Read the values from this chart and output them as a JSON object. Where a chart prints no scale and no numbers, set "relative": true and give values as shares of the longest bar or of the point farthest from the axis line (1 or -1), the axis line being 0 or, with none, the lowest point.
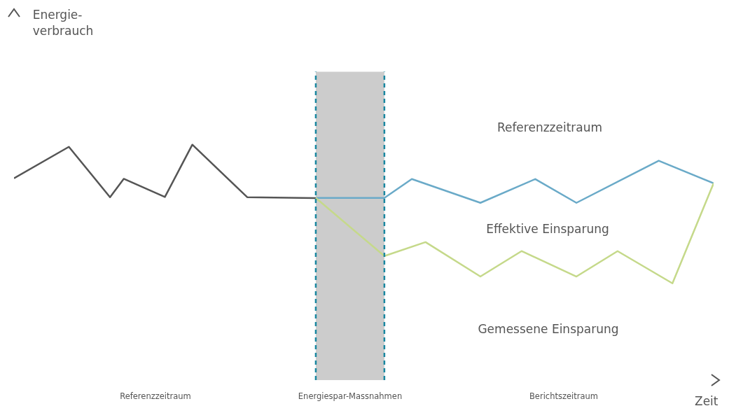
{
  "chart_data": {
    "type": "line",
    "relative": true,
    "xlabel": "Zeit",
    "categories": [
      null,
      null,
      null,
      null,
      null,
      null,
      null,
      null,
      null,
      null,
      null,
      null,
      null,
      null,
      null,
      null,
      null,
      null,
      null,
      null,
      null,
      null,
      null,
      null,
      null,
      null,
      null,
      null,
      null,
      null,
      null,
      null,
      null,
      null,
      null,
      null,
      null,
      null,
      null,
      null,
      null,
      null,
      null,
      null,
      null,
      null,
      null,
      null,
      null,
      null,
      null,
      null
    ],
    "grid": false,
    "legend": false,
    "marker": "none",
    "line_style": "solid",
    "series": [
      {
        "color": "#555555",
        "values": [
          0.857,
          null,
          null,
          null,
          0.991,
          null,
          null,
          0.777,
          0.855,
          null,
          null,
          0.778,
          null,
          1,
          null,
          null,
          null,
          0.777,
          null,
          null,
          null,
          null,
          0.773,
          null,
          null,
          null,
          null,
          null,
          null,
          null,
          null,
          null,
          null,
          null,
          null,
          null,
          null,
          null,
          null,
          null,
          null,
          null,
          null,
          null,
          null,
          null,
          null,
          null,
          null,
          null,
          null,
          null
        ]
      },
      {
        "color": "#6aaac8",
        "values": [
          null,
          null,
          null,
          null,
          null,
          null,
          null,
          null,
          null,
          null,
          null,
          null,
          null,
          null,
          null,
          null,
          null,
          null,
          null,
          null,
          null,
          null,
          0.774,
          null,
          null,
          null,
          null,
          0.774,
          null,
          0.854,
          null,
          null,
          null,
          null,
          0.753,
          null,
          null,
          null,
          0.854,
          null,
          null,
          0.753,
          null,
          null,
          null,
          null,
          null,
          0.932,
          null,
          null,
          null,
          0.836
        ]
      },
      {
        "color": "#c5d98a",
        "values": [
          null,
          null,
          null,
          null,
          null,
          null,
          null,
          null,
          null,
          null,
          null,
          null,
          null,
          null,
          null,
          null,
          null,
          null,
          null,
          null,
          null,
          null,
          0.774,
          null,
          null,
          null,
          null,
          0.527,
          null,
          null,
          0.586,
          null,
          null,
          null,
          0.44,
          null,
          null,
          0.548,
          null,
          null,
          null,
          0.44,
          null,
          null,
          0.548,
          null,
          null,
          null,
          0.411,
          null,
          null,
          0.836
        ]
      }
    ],
    "annotations": [
      "Energie-\nverbrauch",
      "Referenzzeitraum",
      "Effektive Einsparung",
      "Gemessene Einsparung",
      "Referenzzeitraum",
      "Energiespar-Massnahmen",
      "Berichtszeitraum"
    ]
  }
}
